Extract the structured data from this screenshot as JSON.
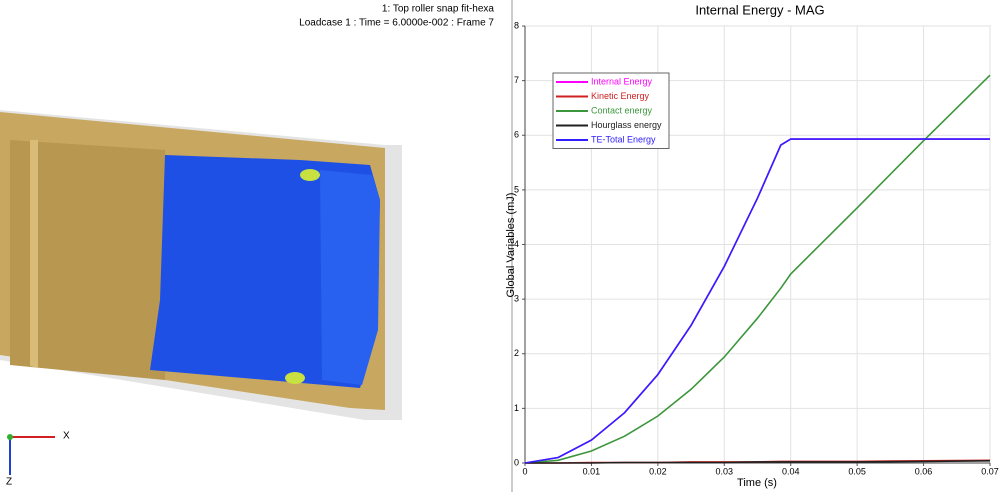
{
  "viewport": {
    "model_title": "1: Top roller snap fit-hexa",
    "status": "Loadcase 1 : Time = 6.0000e-002 : Frame 7",
    "axis_x": "X",
    "axis_z": "Z"
  },
  "chart_data": {
    "type": "line",
    "title": "Internal Energy - MAG",
    "x_label": "Time (s)",
    "y_label": "Global Variables (mJ)",
    "x": [
      0,
      0.005,
      0.01,
      0.015,
      0.02,
      0.025,
      0.03,
      0.035,
      0.0385,
      0.04,
      0.05,
      0.06,
      0.07
    ],
    "series": [
      {
        "name": "Internal Energy",
        "color": "#ff00ff",
        "values": [
          0,
          0.1,
          0.42,
          0.92,
          1.62,
          2.52,
          3.6,
          4.85,
          5.82,
          5.93,
          5.93,
          5.93,
          5.93
        ]
      },
      {
        "name": "Kinetic Energy",
        "color": "#d02020",
        "values": [
          0,
          0,
          0.01,
          0.01,
          0.01,
          0.02,
          0.02,
          0.02,
          0.03,
          0.03,
          0.03,
          0.04,
          0.05
        ]
      },
      {
        "name": "Contact energy",
        "color": "#3c963c",
        "values": [
          0,
          0.05,
          0.22,
          0.49,
          0.86,
          1.35,
          1.94,
          2.65,
          3.2,
          3.46,
          4.67,
          5.9,
          7.1
        ]
      },
      {
        "name": "Hourglass energy",
        "color": "#202020",
        "values": [
          0,
          0,
          0,
          0.01,
          0.01,
          0.01,
          0.01,
          0.02,
          0.02,
          0.02,
          0.02,
          0.03,
          0.04
        ]
      },
      {
        "name": "TE-Total Energy",
        "color": "#3020ff",
        "values": [
          0,
          0.1,
          0.42,
          0.92,
          1.62,
          2.52,
          3.6,
          4.85,
          5.82,
          5.93,
          5.93,
          5.93,
          5.93
        ]
      }
    ],
    "xlim": [
      0,
      0.07
    ],
    "xticks": [
      0,
      0.01,
      0.02,
      0.03,
      0.04,
      0.05,
      0.06,
      0.07
    ],
    "ylim": [
      0,
      8
    ],
    "yticks": [
      0,
      1,
      2,
      3,
      4,
      5,
      6,
      7,
      8
    ],
    "grid": true,
    "legend": "upper left"
  }
}
